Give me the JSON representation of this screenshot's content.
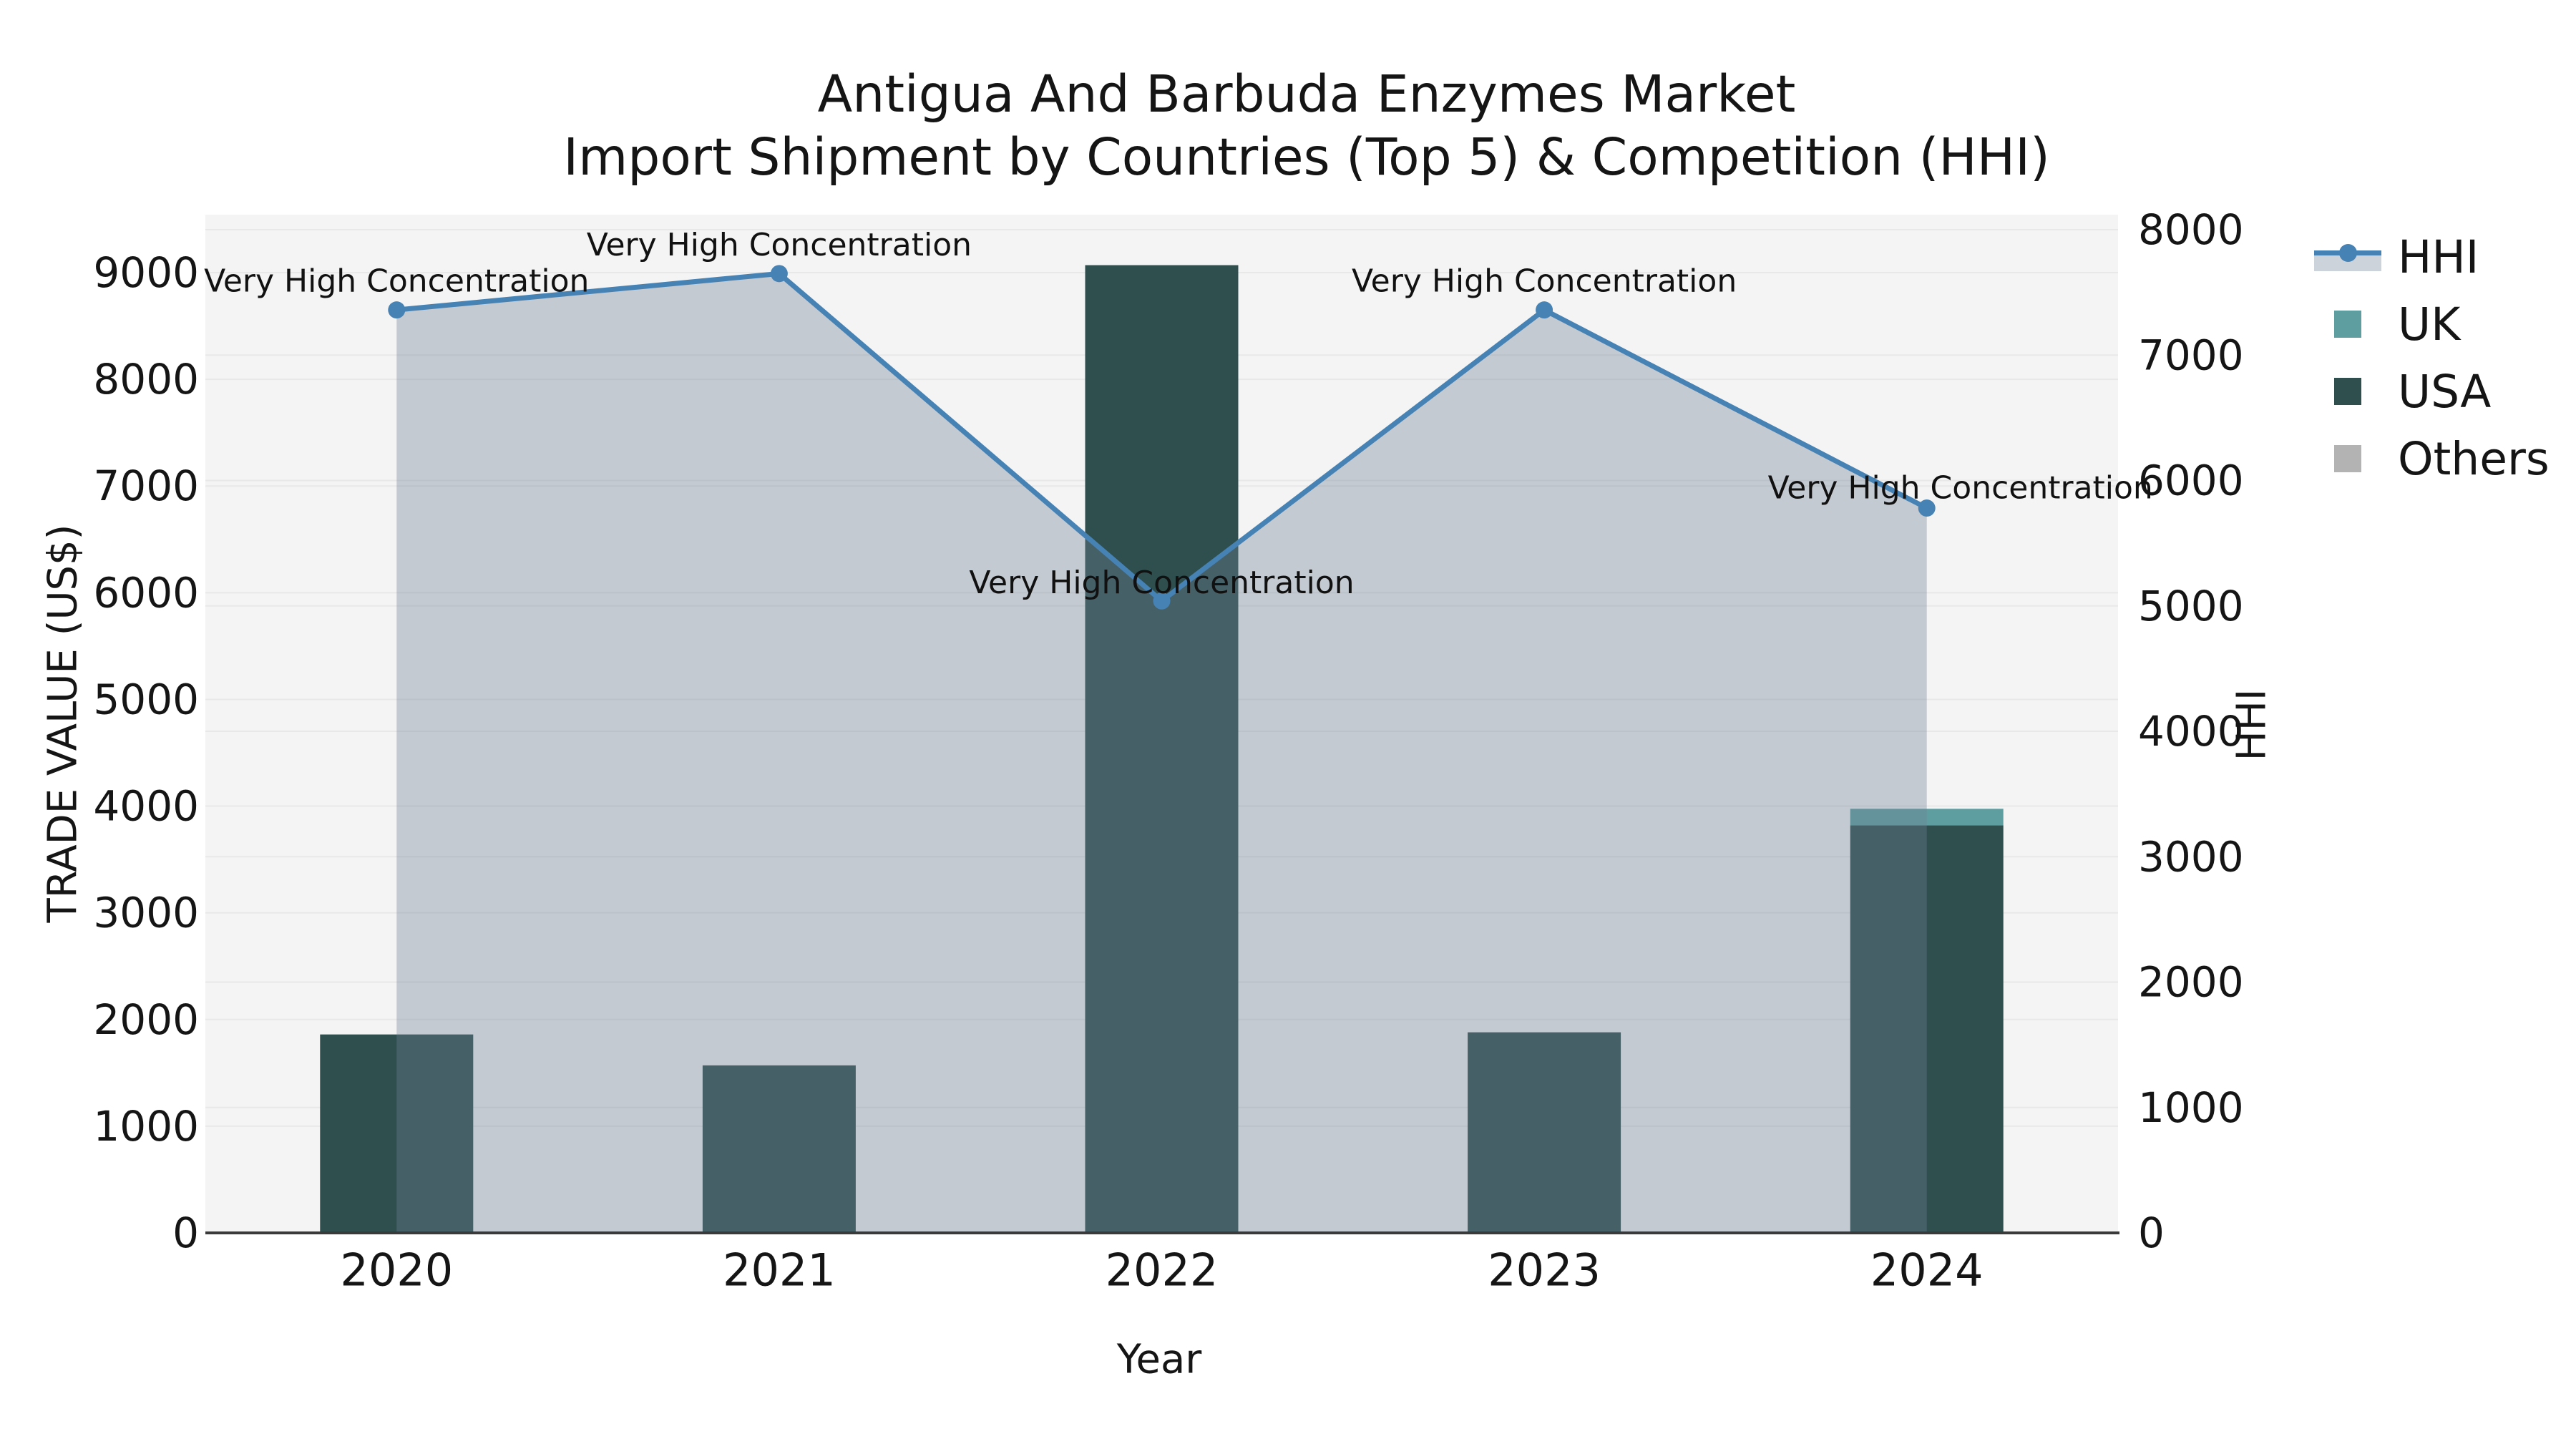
{
  "title": {
    "line1": "Antigua And Barbuda Enzymes Market",
    "line2": "Import Shipment by Countries (Top 5) & Competition (HHI)"
  },
  "chart_data": {
    "type": "bar+line",
    "categories": [
      "2020",
      "2021",
      "2022",
      "2023",
      "2024"
    ],
    "xlabel": "Year",
    "ylabel_left": "TRADE VALUE (US$)",
    "ylabel_right": "HHI",
    "y_left_axis": {
      "min": 0,
      "max": 9000,
      "step": 1000
    },
    "y_right_axis": {
      "min": 0,
      "max": 8000,
      "step": 1000
    },
    "grid": true,
    "bar_series": [
      {
        "name": "USA",
        "color": "#2F4F4F",
        "values": [
          1860,
          1570,
          9070,
          1880,
          3820
        ]
      },
      {
        "name": "UK",
        "color": "#5F9EA0",
        "values": [
          0,
          0,
          0,
          0,
          155
        ]
      },
      {
        "name": "Others",
        "color": "#B3B3B3",
        "values": [
          0,
          0,
          0,
          0,
          0
        ]
      }
    ],
    "line_series": {
      "name": "HHI",
      "color": "#4682B4",
      "area_fill": "rgba(112,128,148,0.36)",
      "values": [
        7360,
        7650,
        5040,
        7360,
        5780
      ]
    },
    "annotations": [
      {
        "year": "2020",
        "text": "Very High Concentration"
      },
      {
        "year": "2021",
        "text": "Very High Concentration"
      },
      {
        "year": "2022",
        "text": "Very High Concentration"
      },
      {
        "year": "2023",
        "text": "Very High Concentration"
      },
      {
        "year": "2024",
        "text": "Very High Concentration"
      }
    ],
    "legend": [
      {
        "label": "HHI",
        "type": "line"
      },
      {
        "label": "UK",
        "type": "patch",
        "color": "#5F9EA0"
      },
      {
        "label": "USA",
        "type": "patch",
        "color": "#2F4F4F"
      },
      {
        "label": "Others",
        "type": "patch",
        "color": "#B3B3B3"
      }
    ],
    "colors": {
      "plot_bg": "#f4f4f4",
      "gridline": "#e8e8e8",
      "axis_line": "#3a3a3a",
      "hhi_legend_band": "#cdd3da",
      "text": "#151515"
    }
  }
}
